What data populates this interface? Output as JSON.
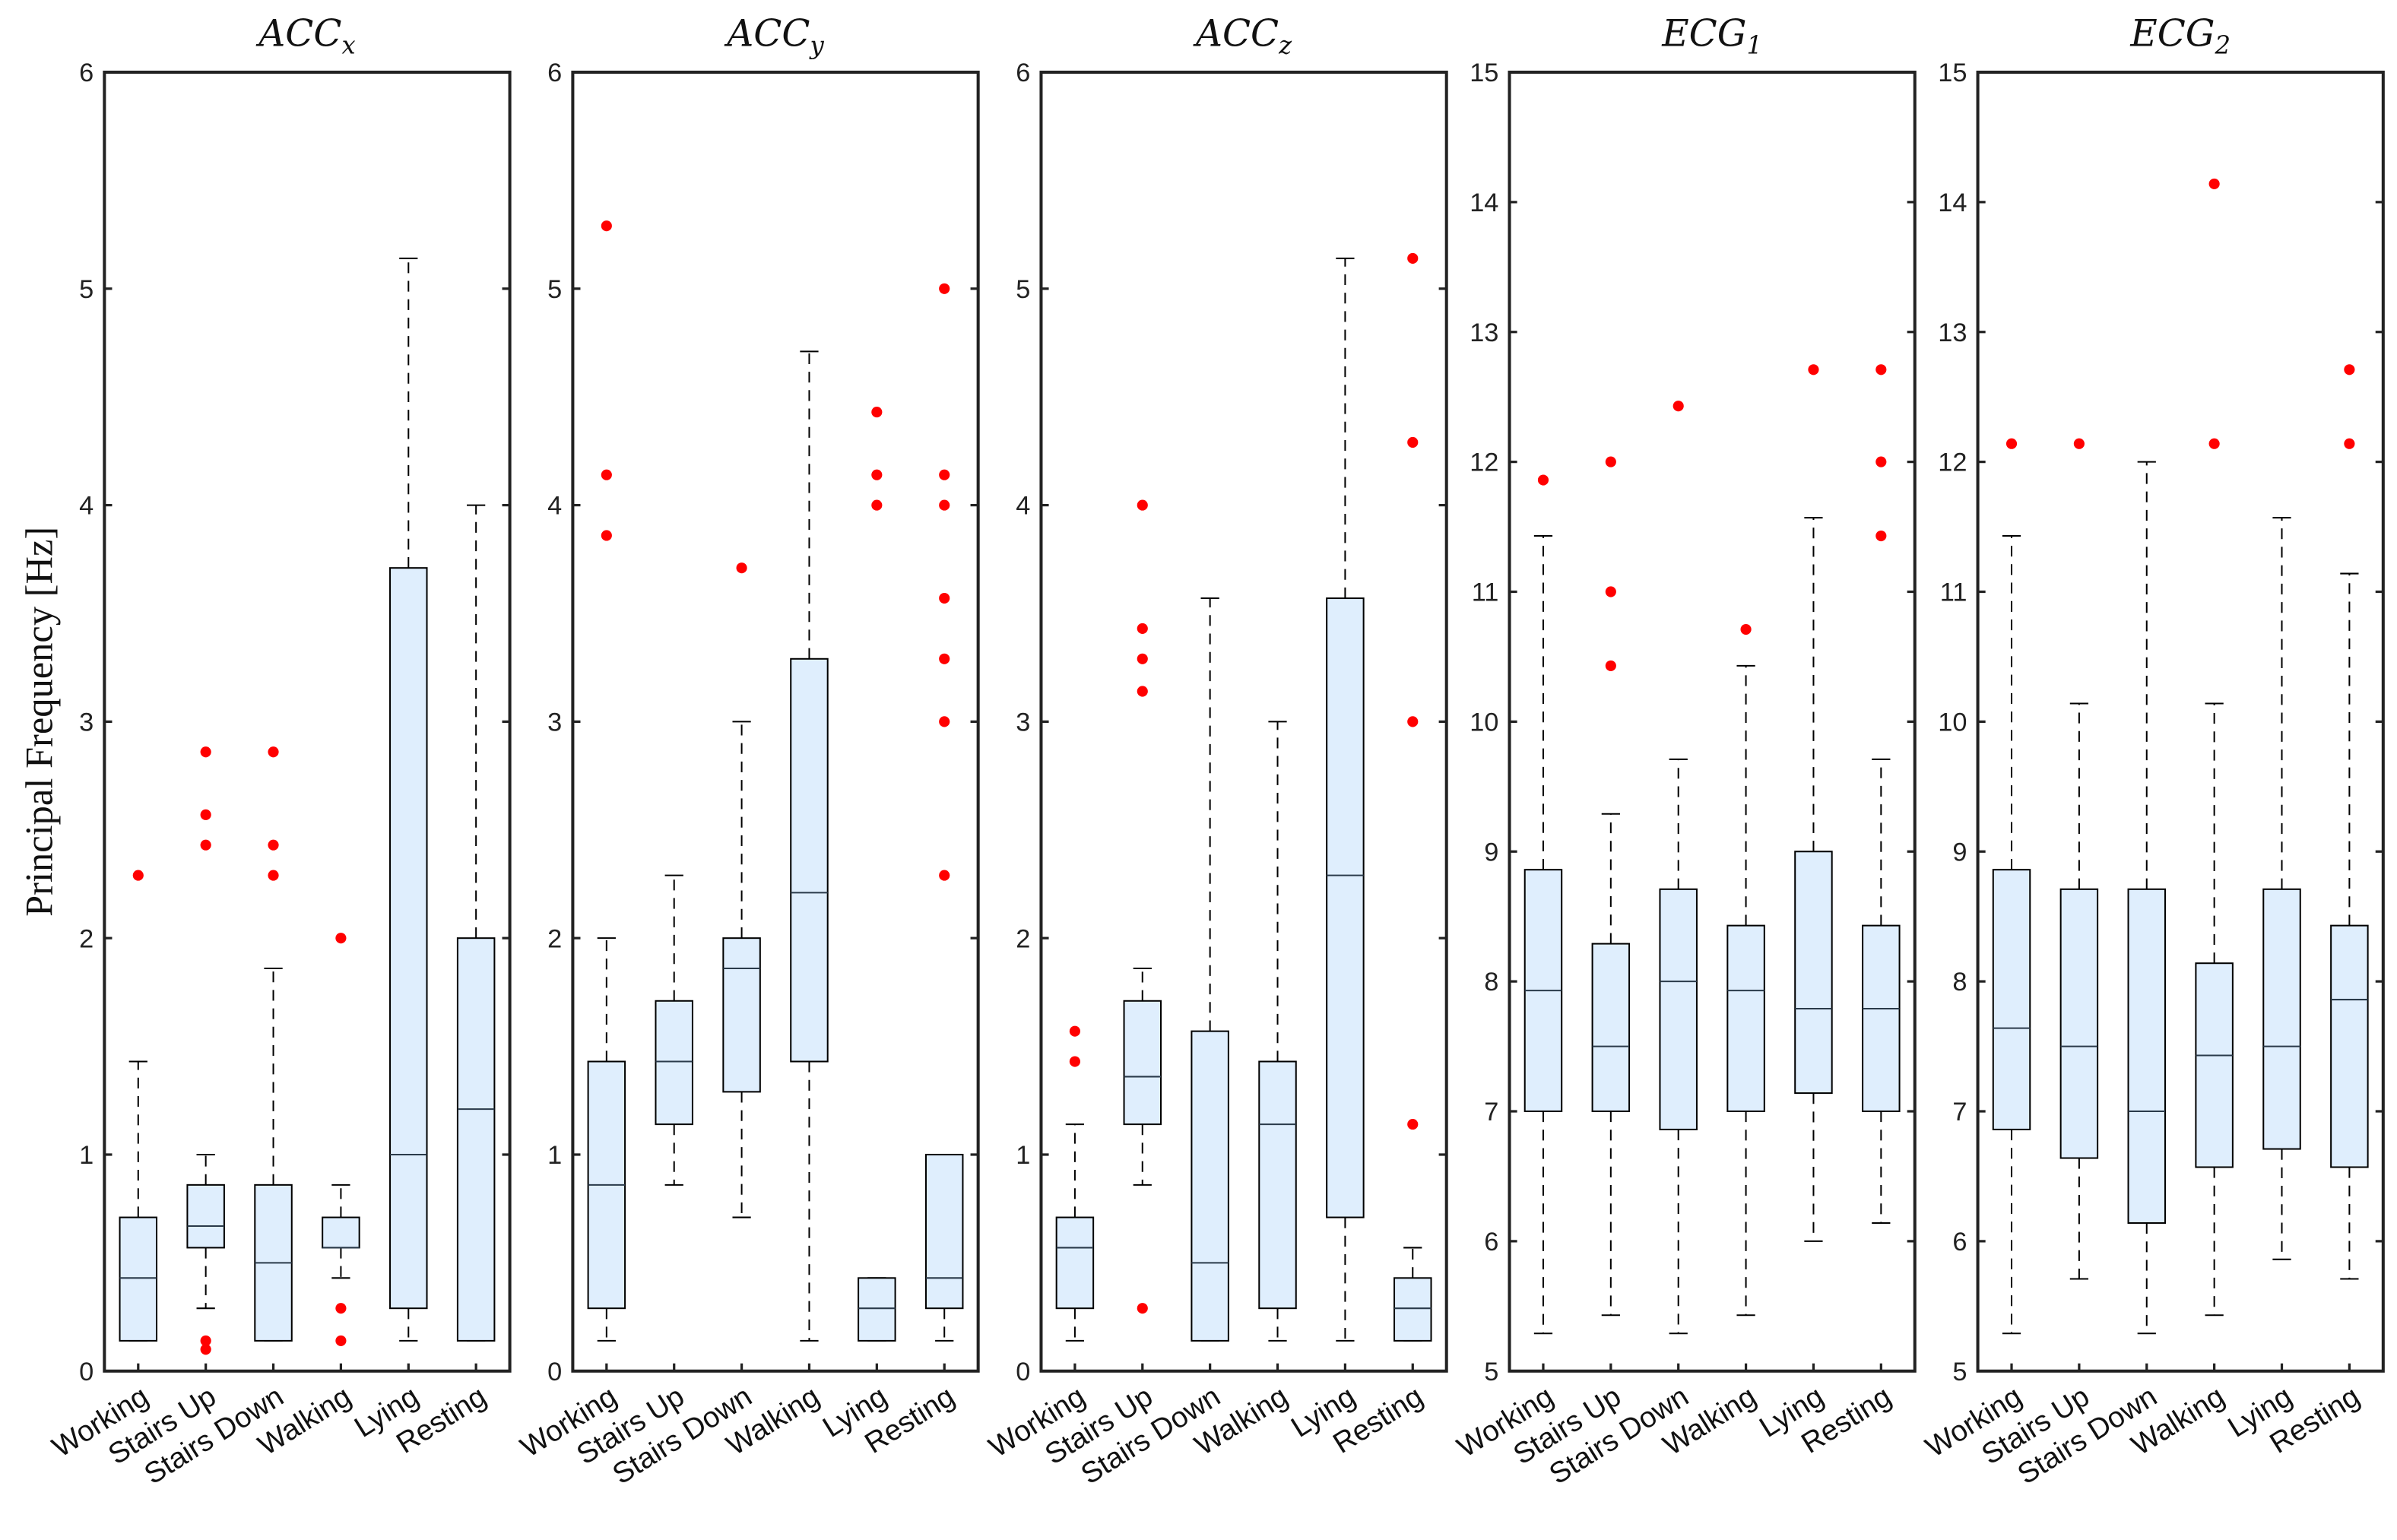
{
  "colors": {
    "box_fill": "#dfeefd",
    "outlier": "#ff0000",
    "axis": "#222222"
  },
  "chart_data": {
    "type": "boxplot",
    "ylabel": "Principal Frequency [Hz]",
    "categories": [
      "Working",
      "Stairs Up",
      "Stairs Down",
      "Walking",
      "Lying",
      "Resting"
    ],
    "panels": [
      {
        "title": "ACC",
        "subscript": "x",
        "ylim": [
          0,
          6
        ],
        "yticks": [
          0,
          1,
          2,
          3,
          4,
          5,
          6
        ],
        "boxes": [
          {
            "low": 0.14,
            "q1": 0.14,
            "median": 0.43,
            "q3": 0.71,
            "high": 1.43,
            "outliers": [
              2.29
            ]
          },
          {
            "low": 0.29,
            "q1": 0.57,
            "median": 0.67,
            "q3": 0.86,
            "high": 1.0,
            "outliers": [
              2.86,
              2.57,
              2.43,
              0.14,
              0.1
            ]
          },
          {
            "low": 0.14,
            "q1": 0.14,
            "median": 0.5,
            "q3": 0.86,
            "high": 1.86,
            "outliers": [
              2.86,
              2.43,
              2.29
            ]
          },
          {
            "low": 0.43,
            "q1": 0.57,
            "median": 0.57,
            "q3": 0.71,
            "high": 0.86,
            "outliers": [
              2.0,
              0.29,
              0.14
            ]
          },
          {
            "low": 0.14,
            "q1": 0.29,
            "median": 1.0,
            "q3": 3.71,
            "high": 5.14,
            "outliers": []
          },
          {
            "low": 0.14,
            "q1": 0.14,
            "median": 1.21,
            "q3": 2.0,
            "high": 4.0,
            "outliers": []
          }
        ]
      },
      {
        "title": "ACC",
        "subscript": "y",
        "ylim": [
          0,
          6
        ],
        "yticks": [
          0,
          1,
          2,
          3,
          4,
          5,
          6
        ],
        "boxes": [
          {
            "low": 0.14,
            "q1": 0.29,
            "median": 0.86,
            "q3": 1.43,
            "high": 2.0,
            "outliers": [
              5.29,
              4.14,
              3.86
            ]
          },
          {
            "low": 0.86,
            "q1": 1.14,
            "median": 1.43,
            "q3": 1.71,
            "high": 2.29,
            "outliers": []
          },
          {
            "low": 0.71,
            "q1": 1.29,
            "median": 1.86,
            "q3": 2.0,
            "high": 3.0,
            "outliers": [
              3.71
            ]
          },
          {
            "low": 0.14,
            "q1": 1.43,
            "median": 2.21,
            "q3": 3.29,
            "high": 4.71,
            "outliers": []
          },
          {
            "low": 0.14,
            "q1": 0.14,
            "median": 0.29,
            "q3": 0.43,
            "high": 0.43,
            "outliers": [
              4.43,
              4.14,
              4.0
            ]
          },
          {
            "low": 0.14,
            "q1": 0.29,
            "median": 0.43,
            "q3": 1.0,
            "high": 1.0,
            "outliers": [
              5.0,
              4.14,
              4.0,
              3.57,
              3.29,
              3.0,
              2.29
            ]
          }
        ]
      },
      {
        "title": "ACC",
        "subscript": "z",
        "ylim": [
          0,
          6
        ],
        "yticks": [
          0,
          1,
          2,
          3,
          4,
          5,
          6
        ],
        "boxes": [
          {
            "low": 0.14,
            "q1": 0.29,
            "median": 0.57,
            "q3": 0.71,
            "high": 1.14,
            "outliers": [
              1.57,
              1.43
            ]
          },
          {
            "low": 0.86,
            "q1": 1.14,
            "median": 1.36,
            "q3": 1.71,
            "high": 1.86,
            "outliers": [
              4.0,
              3.43,
              3.29,
              3.14,
              0.29
            ]
          },
          {
            "low": 0.14,
            "q1": 0.14,
            "median": 0.5,
            "q3": 1.57,
            "high": 3.57,
            "outliers": []
          },
          {
            "low": 0.14,
            "q1": 0.29,
            "median": 1.14,
            "q3": 1.43,
            "high": 3.0,
            "outliers": []
          },
          {
            "low": 0.14,
            "q1": 0.71,
            "median": 2.29,
            "q3": 3.57,
            "high": 5.14,
            "outliers": []
          },
          {
            "low": 0.14,
            "q1": 0.14,
            "median": 0.29,
            "q3": 0.43,
            "high": 0.57,
            "outliers": [
              5.14,
              4.29,
              3.0,
              1.14
            ]
          }
        ]
      },
      {
        "title": "ECG",
        "subscript": "1",
        "ylim": [
          5,
          15
        ],
        "yticks": [
          5,
          6,
          7,
          8,
          9,
          10,
          11,
          12,
          13,
          14,
          15
        ],
        "boxes": [
          {
            "low": 5.29,
            "q1": 7.0,
            "median": 7.93,
            "q3": 8.86,
            "high": 11.43,
            "outliers": [
              11.86
            ]
          },
          {
            "low": 5.43,
            "q1": 7.0,
            "median": 7.5,
            "q3": 8.29,
            "high": 9.29,
            "outliers": [
              12.0,
              11.0,
              10.43
            ]
          },
          {
            "low": 5.29,
            "q1": 6.86,
            "median": 8.0,
            "q3": 8.71,
            "high": 9.71,
            "outliers": [
              12.43
            ]
          },
          {
            "low": 5.43,
            "q1": 7.0,
            "median": 7.93,
            "q3": 8.43,
            "high": 10.43,
            "outliers": [
              10.71
            ]
          },
          {
            "low": 6.0,
            "q1": 7.14,
            "median": 7.79,
            "q3": 9.0,
            "high": 11.57,
            "outliers": [
              12.71
            ]
          },
          {
            "low": 6.14,
            "q1": 7.0,
            "median": 7.79,
            "q3": 8.43,
            "high": 9.71,
            "outliers": [
              12.71,
              12.0,
              11.43
            ]
          }
        ]
      },
      {
        "title": "ECG",
        "subscript": "2",
        "ylim": [
          5,
          15
        ],
        "yticks": [
          5,
          6,
          7,
          8,
          9,
          10,
          11,
          12,
          13,
          14,
          15
        ],
        "boxes": [
          {
            "low": 5.29,
            "q1": 6.86,
            "median": 7.64,
            "q3": 8.86,
            "high": 11.43,
            "outliers": [
              12.14
            ]
          },
          {
            "low": 5.71,
            "q1": 6.64,
            "median": 7.5,
            "q3": 8.71,
            "high": 10.14,
            "outliers": [
              12.14
            ]
          },
          {
            "low": 5.29,
            "q1": 6.14,
            "median": 7.0,
            "q3": 8.71,
            "high": 12.0,
            "outliers": []
          },
          {
            "low": 5.43,
            "q1": 6.57,
            "median": 7.43,
            "q3": 8.14,
            "high": 10.14,
            "outliers": [
              14.14,
              12.14
            ]
          },
          {
            "low": 5.86,
            "q1": 6.71,
            "median": 7.5,
            "q3": 8.71,
            "high": 11.57,
            "outliers": []
          },
          {
            "low": 5.71,
            "q1": 6.57,
            "median": 7.86,
            "q3": 8.43,
            "high": 11.14,
            "outliers": [
              12.71,
              12.14
            ]
          }
        ]
      }
    ]
  }
}
